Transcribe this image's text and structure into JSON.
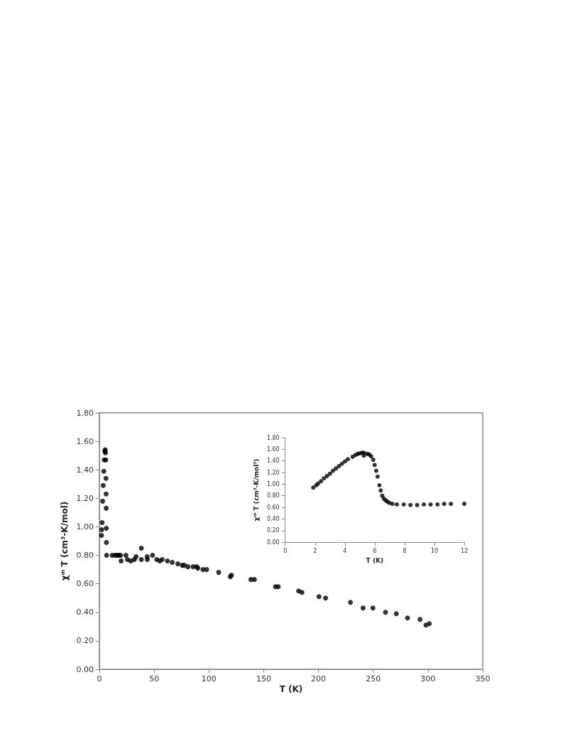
{
  "chart_data": [
    {
      "type": "scatter",
      "xlabel": "T (K)",
      "ylabel": "χᵐ T (cm³-K/mol)",
      "marker": "circle",
      "grid": false,
      "xlim": [
        0,
        350
      ],
      "xticks": [
        0,
        50,
        100,
        150,
        200,
        250,
        300,
        350
      ],
      "ylim": [
        0,
        1.8
      ],
      "yticks": [
        {
          "value": 0,
          "label": "0.00"
        },
        {
          "value": 0.2,
          "label": "0.20"
        },
        {
          "value": 0.4,
          "label": "0.40"
        },
        {
          "value": 0.6,
          "label": "0.60"
        },
        {
          "value": 0.8,
          "label": "0.80"
        },
        {
          "value": 1.0,
          "label": "1.00"
        },
        {
          "value": 1.2,
          "label": "1.20"
        },
        {
          "value": 1.4,
          "label": "1.40"
        },
        {
          "value": 1.6,
          "label": "1.60"
        },
        {
          "value": 1.8,
          "label": "1.80"
        }
      ],
      "series": [
        {
          "color": "#000000",
          "x": [
            1.9,
            2.1,
            2.5,
            3,
            3.5,
            4,
            4.5,
            5,
            5.3,
            5.5,
            5.8,
            6,
            6.1,
            6.2,
            6.3,
            6.4,
            6.6,
            11.7,
            14.3,
            16.1,
            17.6,
            19.4,
            19.8,
            24.2,
            25.6,
            28.6,
            31.9,
            33.5,
            38.3,
            38.3,
            43.6,
            43.8,
            48.5,
            52.4,
            55.1,
            57.3,
            62.1,
            66.5,
            71.6,
            75.6,
            77.5,
            80.8,
            85.5,
            88.8,
            89.9,
            94.6,
            97.9,
            108.9,
            119.5,
            120.5,
            138.3,
            141.5,
            160.7,
            163.3,
            181.9,
            184.9,
            200.5,
            206.5,
            229.2,
            240.7,
            249.7,
            261.2,
            271.1,
            281.3,
            292.7,
            298.1,
            301.2
          ],
          "values": [
            0.94,
            0.98,
            1.03,
            1.18,
            1.29,
            1.39,
            1.47,
            1.53,
            1.54,
            1.52,
            1.47,
            1.34,
            1.23,
            1.13,
            0.99,
            0.89,
            0.8,
            0.8,
            0.8,
            0.8,
            0.8,
            0.8,
            0.76,
            0.8,
            0.77,
            0.76,
            0.77,
            0.79,
            0.85,
            0.77,
            0.79,
            0.77,
            0.8,
            0.77,
            0.76,
            0.77,
            0.76,
            0.75,
            0.74,
            0.73,
            0.73,
            0.72,
            0.72,
            0.72,
            0.71,
            0.7,
            0.7,
            0.68,
            0.65,
            0.66,
            0.63,
            0.63,
            0.58,
            0.58,
            0.55,
            0.54,
            0.51,
            0.5,
            0.47,
            0.43,
            0.43,
            0.4,
            0.39,
            0.36,
            0.35,
            0.31,
            0.32
          ]
        }
      ]
    },
    {
      "type": "scatter",
      "xlabel": "T (K)",
      "ylabel": "χᵐ T (cm³-K/mol³)",
      "marker": "circle",
      "grid": false,
      "xlim": [
        0,
        12
      ],
      "xticks": [
        0,
        2,
        4,
        6,
        8,
        10,
        12
      ],
      "ylim": [
        0,
        1.8
      ],
      "yticks": [
        {
          "value": 0,
          "label": "0.00"
        },
        {
          "value": 0.2,
          "label": "0.20"
        },
        {
          "value": 0.4,
          "label": "0.40"
        },
        {
          "value": 0.6,
          "label": "0.60"
        },
        {
          "value": 0.8,
          "label": "0.80"
        },
        {
          "value": 1.0,
          "label": "1.00"
        },
        {
          "value": 1.2,
          "label": "1.20"
        },
        {
          "value": 1.4,
          "label": "1.40"
        },
        {
          "value": 1.6,
          "label": "1.60"
        },
        {
          "value": 1.8,
          "label": "1.80"
        }
      ],
      "series": [
        {
          "color": "#000000",
          "x": [
            1.88,
            2.08,
            2.2,
            2.4,
            2.6,
            2.8,
            3.0,
            3.2,
            3.4,
            3.6,
            3.8,
            4.0,
            4.2,
            4.52,
            4.7,
            4.85,
            5.0,
            5.15,
            5.27,
            5.27,
            5.5,
            5.63,
            5.75,
            5.9,
            5.99,
            6.1,
            6.19,
            6.31,
            6.4,
            6.5,
            6.61,
            6.73,
            6.84,
            6.97,
            7.18,
            7.48,
            7.94,
            8.39,
            8.84,
            9.29,
            9.74,
            10.2,
            10.65,
            11.1,
            12.0
          ],
          "values": [
            0.94,
            0.98,
            1.01,
            1.05,
            1.1,
            1.14,
            1.18,
            1.23,
            1.27,
            1.31,
            1.35,
            1.39,
            1.43,
            1.47,
            1.5,
            1.52,
            1.53,
            1.54,
            1.54,
            1.49,
            1.52,
            1.51,
            1.48,
            1.42,
            1.33,
            1.23,
            1.13,
            0.98,
            0.89,
            0.8,
            0.75,
            0.72,
            0.7,
            0.68,
            0.66,
            0.65,
            0.65,
            0.64,
            0.64,
            0.65,
            0.65,
            0.65,
            0.66,
            0.66,
            0.66
          ]
        }
      ]
    }
  ]
}
